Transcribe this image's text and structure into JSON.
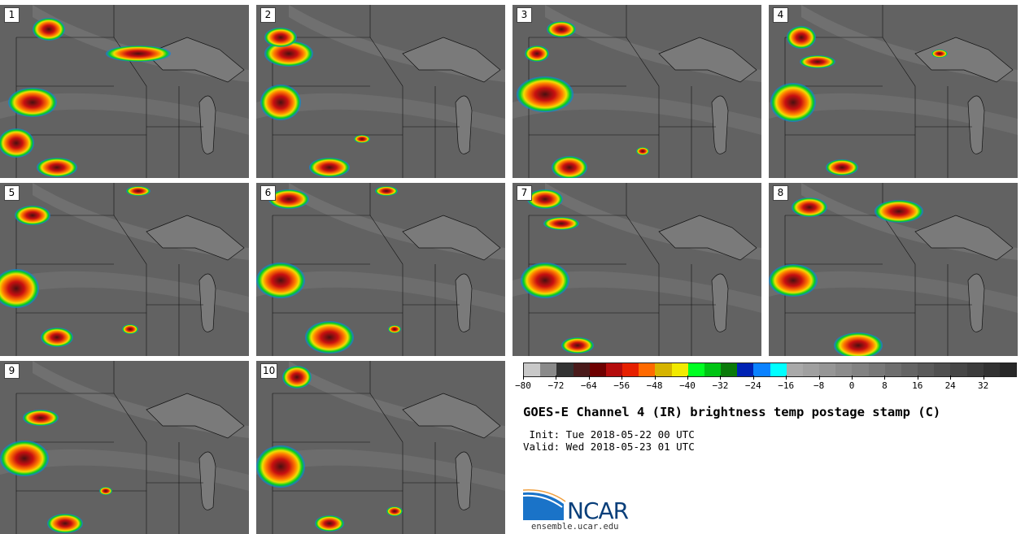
{
  "panels": [
    {
      "label": "1"
    },
    {
      "label": "2"
    },
    {
      "label": "3"
    },
    {
      "label": "4"
    },
    {
      "label": "5"
    },
    {
      "label": "6"
    },
    {
      "label": "7"
    },
    {
      "label": "8"
    },
    {
      "label": "9"
    },
    {
      "label": "10"
    }
  ],
  "colorbar": {
    "ticks": [
      "−80",
      "−72",
      "−64",
      "−56",
      "−48",
      "−40",
      "−32",
      "−24",
      "−16",
      "−8",
      "0",
      "8",
      "16",
      "24",
      "32"
    ],
    "range": [
      -80,
      40
    ],
    "colors": [
      "#c8c8c8",
      "#8a8a8a",
      "#333333",
      "#4a1a1a",
      "#6e0000",
      "#b40c0c",
      "#e62000",
      "#ff6a00",
      "#d6b400",
      "#f2ea00",
      "#00ff22",
      "#00c414",
      "#0a7a0a",
      "#0022b4",
      "#0a82ff",
      "#00ffff",
      "#a9a9a9",
      "#a0a0a0",
      "#969696",
      "#8c8c8c",
      "#828282",
      "#787878",
      "#6e6e6e",
      "#646464",
      "#5a5a5a",
      "#505050",
      "#464646",
      "#3c3c3c",
      "#323232",
      "#282828"
    ]
  },
  "title": "GOES-E Channel 4 (IR) brightness temp postage stamp (C)",
  "init_line": " Init: Tue 2018-05-22 00 UTC",
  "valid_line": "Valid: Wed 2018-05-23 01 UTC",
  "logo": {
    "text": "NCAR",
    "url": "ensemble.ucar.edu",
    "color": "#0a3f7a"
  }
}
